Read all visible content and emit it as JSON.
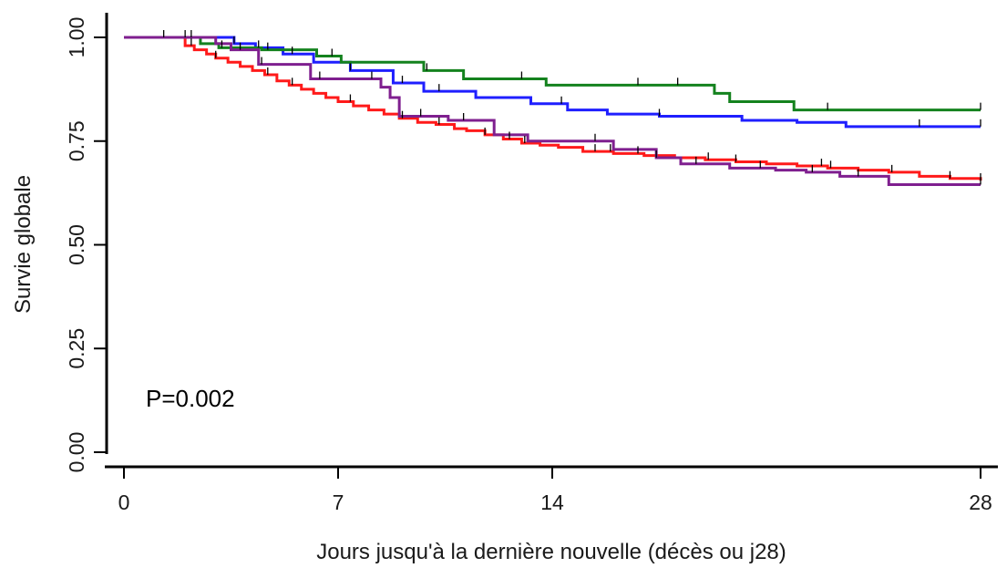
{
  "chart_data": {
    "type": "line",
    "step": true,
    "title": "",
    "xlabel": "Jours jusqu'à la dernière nouvelle (décès ou j28)",
    "ylabel": "Survie globale",
    "xlim": [
      0,
      28
    ],
    "ylim": [
      0,
      1
    ],
    "xticks": [
      0,
      7,
      14,
      28
    ],
    "xtick_labels": [
      "0",
      "7",
      "14",
      "28"
    ],
    "yticks": [
      0,
      0.25,
      0.5,
      0.75,
      1
    ],
    "ytick_labels": [
      "0.00",
      "0.25",
      "0.50",
      "0.75",
      "1.00"
    ],
    "grid": false,
    "legend": "none",
    "annotation": "P=0.002",
    "series": [
      {
        "color": "#ff1a1a",
        "x": [
          0,
          2.0,
          2.3,
          2.7,
          3.0,
          3.4,
          3.8,
          4.2,
          4.6,
          5.0,
          5.4,
          5.8,
          6.2,
          6.6,
          7.0,
          7.5,
          8.0,
          8.5,
          9.0,
          9.6,
          10.2,
          10.8,
          11.2,
          11.8,
          12.4,
          13.0,
          13.6,
          14.2,
          15.0,
          16.0,
          17.0,
          18.0,
          19.0,
          20.0,
          21.0,
          22.0,
          23.0,
          24.0,
          25.0,
          26.0,
          27.0,
          28.0
        ],
        "y": [
          1.0,
          0.98,
          0.97,
          0.96,
          0.95,
          0.94,
          0.93,
          0.92,
          0.91,
          0.895,
          0.885,
          0.875,
          0.865,
          0.855,
          0.845,
          0.835,
          0.825,
          0.815,
          0.805,
          0.795,
          0.79,
          0.78,
          0.775,
          0.765,
          0.755,
          0.745,
          0.74,
          0.735,
          0.725,
          0.72,
          0.715,
          0.71,
          0.705,
          0.7,
          0.695,
          0.69,
          0.685,
          0.68,
          0.675,
          0.665,
          0.66,
          0.655
        ]
      },
      {
        "color": "#1f1fff",
        "x": [
          0,
          3.6,
          4.3,
          5.2,
          6.2,
          7.4,
          8.8,
          9.8,
          11.5,
          13.3,
          14.5,
          15.8,
          17.5,
          20.2,
          22.0,
          23.6,
          28.0
        ],
        "y": [
          1.0,
          0.985,
          0.975,
          0.96,
          0.94,
          0.92,
          0.89,
          0.87,
          0.855,
          0.84,
          0.825,
          0.815,
          0.81,
          0.8,
          0.795,
          0.785,
          0.785
        ]
      },
      {
        "color": "#14821e",
        "x": [
          0,
          2.5,
          3.1,
          4.5,
          6.3,
          7.1,
          9.8,
          11.1,
          13.8,
          19.3,
          19.8,
          21.9,
          28.0
        ],
        "y": [
          1.0,
          0.985,
          0.975,
          0.97,
          0.955,
          0.94,
          0.92,
          0.9,
          0.885,
          0.865,
          0.845,
          0.825,
          0.825
        ]
      },
      {
        "color": "#7f1f8f",
        "x": [
          0,
          3.0,
          3.5,
          4.4,
          6.1,
          8.4,
          8.7,
          9.0,
          10.6,
          12.1,
          13.2,
          16.0,
          17.4,
          18.2,
          19.8,
          21.3,
          22.3,
          23.4,
          25.0,
          28.0
        ],
        "y": [
          1.0,
          0.985,
          0.97,
          0.935,
          0.9,
          0.88,
          0.855,
          0.81,
          0.8,
          0.765,
          0.75,
          0.73,
          0.71,
          0.695,
          0.685,
          0.68,
          0.675,
          0.665,
          0.645,
          0.645
        ]
      }
    ],
    "censor_marks": [
      {
        "series": 0,
        "x": [
          1.3,
          2.2,
          3.0,
          4.7,
          5.5,
          7.4,
          9.1,
          10.3,
          11.8,
          12.6,
          13.1,
          15.4,
          15.9,
          16.8,
          19.1,
          20.0,
          22.8,
          23.1,
          25.1,
          27.0,
          28.0
        ]
      },
      {
        "series": 1,
        "x": [
          3.6,
          4.4,
          5.5,
          7.4,
          9.1,
          10.3,
          14.3,
          17.5,
          26.0,
          28.0
        ]
      },
      {
        "series": 2,
        "x": [
          2.2,
          3.2,
          4.7,
          6.8,
          9.9,
          13.0,
          16.8,
          18.1,
          23.0,
          28.0
        ]
      },
      {
        "series": 3,
        "x": [
          2.0,
          3.8,
          4.5,
          6.4,
          8.1,
          9.7,
          11.1,
          15.4,
          17.4,
          18.7,
          20.8,
          22.5,
          24.0,
          28.0
        ]
      }
    ]
  }
}
